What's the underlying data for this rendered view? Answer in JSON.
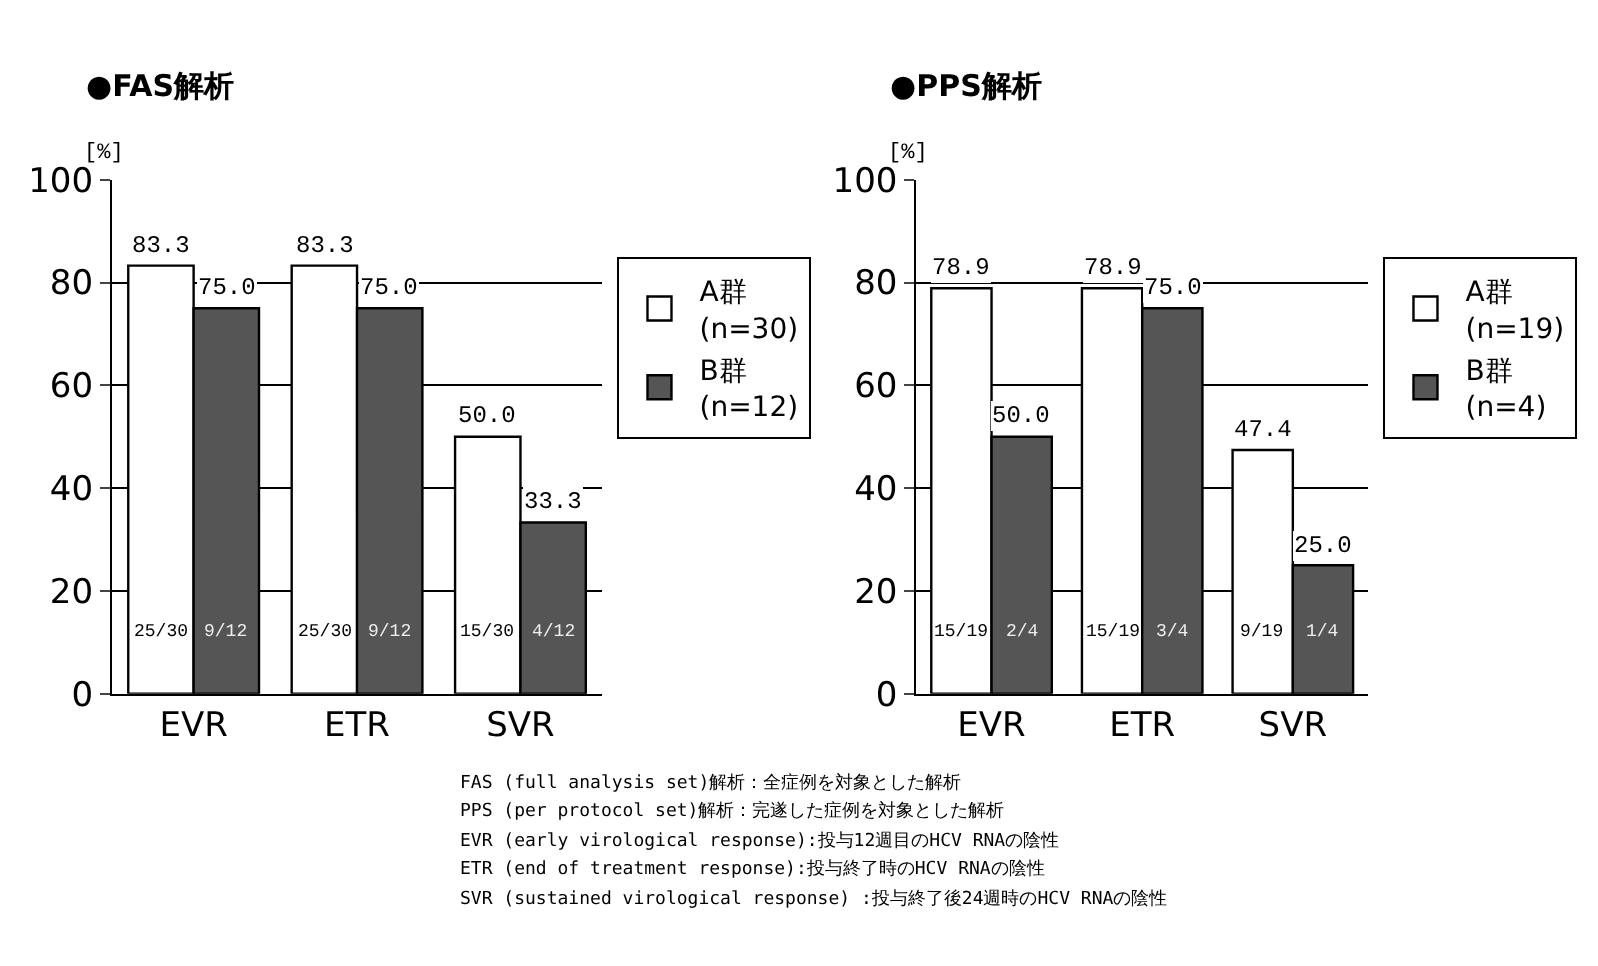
{
  "chart_data": [
    {
      "type": "bar",
      "title": "●FAS解析",
      "ylabel": "[%]",
      "categories": [
        "EVR",
        "ETR",
        "SVR"
      ],
      "ylim": [
        0,
        100
      ],
      "yticks": [
        0,
        20,
        40,
        60,
        80,
        100
      ],
      "grid": "y",
      "legend": "right",
      "series": [
        {
          "name": "A群\n(n=30)",
          "color": "#ffffff",
          "values": [
            83.3,
            83.3,
            50.0
          ],
          "value_labels": [
            "83.3",
            "83.3",
            "50.0"
          ]
        },
        {
          "name": "B群\n(n=12)",
          "color": "#555555",
          "values": [
            75.0,
            75.0,
            33.3
          ],
          "value_labels": [
            "75.0",
            "75.0",
            "33.3"
          ]
        }
      ],
      "annotations": [
        {
          "text": "25/30",
          "x": "EVR",
          "y": 12
        },
        {
          "text": "9/12",
          "x": "EVR",
          "y": 12
        },
        {
          "text": "25/30",
          "x": "ETR",
          "y": 12
        },
        {
          "text": "9/12",
          "x": "ETR",
          "y": 12
        },
        {
          "text": "15/30",
          "x": "SVR",
          "y": 12
        },
        {
          "text": "4/12",
          "x": "SVR",
          "y": 12
        }
      ]
    },
    {
      "type": "bar",
      "title": "●PPS解析",
      "ylabel": "[%]",
      "categories": [
        "EVR",
        "ETR",
        "SVR"
      ],
      "ylim": [
        0,
        100
      ],
      "yticks": [
        0,
        20,
        40,
        60,
        80,
        100
      ],
      "grid": "y",
      "legend": "right",
      "series": [
        {
          "name": "A群\n(n=19)",
          "color": "#ffffff",
          "values": [
            78.9,
            78.9,
            47.4
          ],
          "value_labels": [
            "78.9",
            "78.9",
            "47.4"
          ]
        },
        {
          "name": "B群\n(n=4)",
          "color": "#555555",
          "values": [
            50.0,
            75.0,
            25.0
          ],
          "value_labels": [
            "50.0",
            "75.0",
            "25.0"
          ]
        }
      ],
      "annotations": [
        {
          "text": "15/19",
          "x": "EVR",
          "y": 12
        },
        {
          "text": "2/4",
          "x": "EVR",
          "y": 12
        },
        {
          "text": "15/19",
          "x": "ETR",
          "y": 12
        },
        {
          "text": "3/4",
          "x": "ETR",
          "y": 12
        },
        {
          "text": "9/19",
          "x": "SVR",
          "y": 12
        },
        {
          "text": "1/4",
          "x": "SVR",
          "y": 12
        }
      ]
    },
    {
      "type": "other",
      "annotations": [
        "FAS (full analysis set)解析：全症例を対象とした解析",
        "PPS (per protocol set)解析：完遂した症例を対象とした解析",
        "EVR (early virological response):投与12週目のHCV RNAの陰性",
        "ETR (end of treatment response):投与終了時のHCV RNAの陰性",
        "SVR (sustained virological response) :投与終了後24週時のHCV RNAの陰性"
      ]
    }
  ]
}
